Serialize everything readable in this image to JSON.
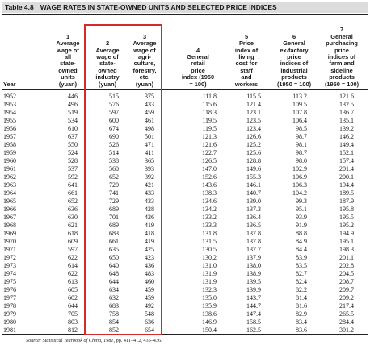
{
  "table": {
    "number": "Table 4.8",
    "title": "WAGE RATES IN STATE-OWNED UNITS AND SELECTED PRICE INDICES",
    "columns": [
      {
        "num": "",
        "lines": [
          "Year"
        ]
      },
      {
        "num": "1",
        "lines": [
          "Average",
          "wage of",
          "all",
          "state-",
          "owned",
          "units",
          "(yuan)"
        ]
      },
      {
        "num": "2",
        "lines": [
          "Average",
          "wage of",
          "state-",
          "owned",
          "industry",
          "(yuan)"
        ]
      },
      {
        "num": "3",
        "lines": [
          "Average",
          "wage of",
          "agri-",
          "culture,",
          "forestry,",
          "etc.",
          "(yuan)"
        ]
      },
      {
        "num": "4",
        "lines": [
          "General",
          "retail",
          "price",
          "index (1950",
          "= 100)"
        ]
      },
      {
        "num": "5",
        "lines": [
          "Price",
          "index of",
          "living",
          "cost for",
          "staff",
          "and",
          "workers"
        ]
      },
      {
        "num": "6",
        "lines": [
          "General",
          "ex-factory",
          "price",
          "indices of",
          "industrial",
          "products",
          "(1950 = 100)"
        ]
      },
      {
        "num": "7",
        "lines": [
          "General",
          "purchasing",
          "price",
          "indices of",
          "farm and",
          "sideline",
          "products",
          "(1950 = 100)"
        ]
      }
    ],
    "rows": [
      [
        "1952",
        "446",
        "515",
        "375",
        "111.8",
        "115.5",
        "113.2",
        "121.6"
      ],
      [
        "1953",
        "496",
        "576",
        "433",
        "115.6",
        "121.4",
        "109.5",
        "132.5"
      ],
      [
        "1954",
        "519",
        "597",
        "459",
        "118.3",
        "123.1",
        "107.8",
        "136.7"
      ],
      [
        "1955",
        "534",
        "600",
        "461",
        "119.5",
        "123.5",
        "106.4",
        "135.1"
      ],
      [
        "1956",
        "610",
        "674",
        "498",
        "119.5",
        "123.4",
        "98.5",
        "139.2"
      ],
      [
        "1957",
        "637",
        "690",
        "501",
        "121.3",
        "126.6",
        "98.7",
        "146.2"
      ],
      [
        "1958",
        "550",
        "526",
        "471",
        "121.6",
        "125.2",
        "98.1",
        "149.4"
      ],
      [
        "1959",
        "524",
        "514",
        "411",
        "122.7",
        "125.6",
        "98.7",
        "152.1"
      ],
      [
        "1960",
        "528",
        "538",
        "365",
        "126.5",
        "128.8",
        "98.0",
        "157.4"
      ],
      [
        "1961",
        "537",
        "560",
        "393",
        "147.0",
        "149.6",
        "102.9",
        "201.4"
      ],
      [
        "1962",
        "592",
        "652",
        "392",
        "152.6",
        "155.3",
        "106.9",
        "200.1"
      ],
      [
        "1963",
        "641",
        "720",
        "421",
        "143.6",
        "146.1",
        "106.3",
        "194.4"
      ],
      [
        "1964",
        "661",
        "741",
        "433",
        "138.3",
        "140.7",
        "104.2",
        "189.5"
      ],
      [
        "1965",
        "652",
        "729",
        "433",
        "134.6",
        "139.0",
        "99.3",
        "187.9"
      ],
      [
        "1966",
        "636",
        "689",
        "428",
        "134.2",
        "137.3",
        "95.1",
        "195.8"
      ],
      [
        "1967",
        "630",
        "701",
        "426",
        "133.2",
        "136.4",
        "93.9",
        "195.5"
      ],
      [
        "1968",
        "621",
        "689",
        "419",
        "133.3",
        "136.5",
        "91.9",
        "195.2"
      ],
      [
        "1969",
        "618",
        "683",
        "418",
        "131.8",
        "137.8",
        "88.8",
        "194.9"
      ],
      [
        "1970",
        "609",
        "661",
        "419",
        "131.5",
        "137.8",
        "84.9",
        "195.1"
      ],
      [
        "1971",
        "597",
        "635",
        "425",
        "130.5",
        "137.7",
        "84.4",
        "198.3"
      ],
      [
        "1972",
        "622",
        "650",
        "423",
        "130.2",
        "137.9",
        "83.9",
        "201.1"
      ],
      [
        "1973",
        "614",
        "640",
        "436",
        "131.0",
        "138.0",
        "83.5",
        "202.8"
      ],
      [
        "1974",
        "622",
        "648",
        "483",
        "131.9",
        "138.9",
        "82.7",
        "204.5"
      ],
      [
        "1975",
        "613",
        "644",
        "460",
        "131.9",
        "139.5",
        "82.4",
        "208.7"
      ],
      [
        "1976",
        "605",
        "634",
        "459",
        "132.3",
        "139.9",
        "82.2",
        "209.7"
      ],
      [
        "1977",
        "602",
        "632",
        "459",
        "135.0",
        "143.7",
        "81.4",
        "209.2"
      ],
      [
        "1978",
        "644",
        "683",
        "492",
        "135.9",
        "144.7",
        "81.6",
        "217.4"
      ],
      [
        "1979",
        "705",
        "758",
        "548",
        "138.6",
        "147.4",
        "82.9",
        "265.5"
      ],
      [
        "1980",
        "803",
        "854",
        "636",
        "146.9",
        "158.5",
        "83.4",
        "284.4"
      ],
      [
        "1981",
        "812",
        "852",
        "654",
        "150.4",
        "162.5",
        "83.6",
        "301.2"
      ]
    ],
    "source_label": "Source:",
    "source_title": "Statistical Yearbook of China, 1981,",
    "source_pages": "pp. 411–412, 435–436."
  }
}
